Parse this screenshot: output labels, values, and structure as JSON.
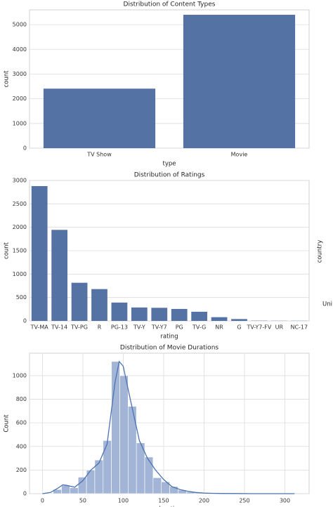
{
  "chart_data": [
    {
      "type": "bar",
      "title": "Distribution of Content Types",
      "xlabel": "type",
      "ylabel": "count",
      "categories": [
        "TV Show",
        "Movie"
      ],
      "values": [
        2410,
        5400
      ],
      "color": "#5572a4",
      "ylim": [
        0,
        5600
      ],
      "yticks": [
        0,
        1000,
        2000,
        3000,
        4000,
        5000
      ],
      "grid": true
    },
    {
      "type": "bar",
      "title": "Distribution of Ratings",
      "xlabel": "rating",
      "ylabel": "count",
      "categories": [
        "TV-MA",
        "TV-14",
        "TV-PG",
        "R",
        "PG-13",
        "TV-Y",
        "TV-Y7",
        "PG",
        "TV-G",
        "NR",
        "G",
        "TV-Y7-FV",
        "UR",
        "NC-17"
      ],
      "values": [
        2880,
        1945,
        815,
        680,
        392,
        287,
        280,
        256,
        196,
        80,
        40,
        5,
        3,
        3
      ],
      "color": "#5572a4",
      "ylim": [
        0,
        3000
      ],
      "yticks": [
        0,
        500,
        1000,
        1500,
        2000,
        2500,
        3000
      ],
      "grid": true
    },
    {
      "type": "histogram",
      "title": "Distribution of Movie Durations",
      "xlabel": "duration",
      "ylabel": "Count",
      "bins": [
        3,
        13.3,
        23.6,
        33.9,
        44.2,
        54.5,
        64.8,
        75.1,
        85.4,
        95.7,
        106,
        116.3,
        126.6,
        136.9,
        147.2,
        157.5,
        167.8,
        178.1,
        188.4,
        198.7,
        209,
        219.3,
        229.6,
        239.9,
        250.2,
        260.5,
        270.8,
        281.1,
        291.4,
        301.7,
        312
      ],
      "counts": [
        5,
        35,
        70,
        50,
        140,
        200,
        285,
        450,
        1120,
        1000,
        740,
        430,
        310,
        135,
        100,
        60,
        30,
        15,
        10,
        5,
        3,
        2,
        1,
        1,
        0,
        0,
        0,
        0,
        0,
        1
      ],
      "kde": {
        "x": [
          0,
          10,
          20,
          25,
          30,
          40,
          50,
          60,
          70,
          80,
          90,
          95,
          100,
          110,
          120,
          130,
          140,
          150,
          160,
          170,
          180,
          190,
          200,
          210,
          220,
          240,
          260,
          300,
          312
        ],
        "values": [
          0,
          10,
          50,
          75,
          70,
          55,
          110,
          200,
          260,
          420,
          950,
          1120,
          1080,
          760,
          450,
          300,
          200,
          120,
          60,
          35,
          20,
          10,
          5,
          3,
          2,
          1,
          0,
          0,
          0
        ]
      },
      "color": "#a3b5d6",
      "line_color": "#4c72b0",
      "xlim": [
        -16,
        330
      ],
      "xticks": [
        0,
        50,
        100,
        150,
        200,
        250,
        300
      ],
      "ylim": [
        0,
        1190
      ],
      "yticks": [
        0,
        200,
        400,
        600,
        800,
        1000
      ],
      "grid": true
    }
  ],
  "side_labels": [
    "country",
    "Uni"
  ]
}
